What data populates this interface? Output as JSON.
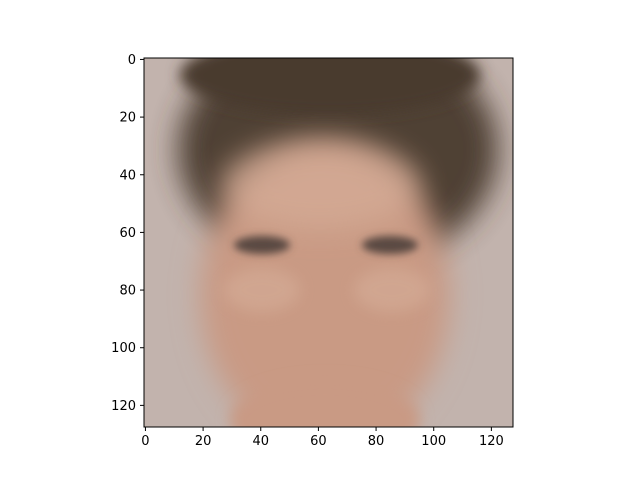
{
  "chart_data": {
    "type": "heatmap",
    "subtype": "image",
    "title": "",
    "xlabel": "",
    "ylabel": "",
    "image_shape": [
      128,
      128
    ],
    "xlim": [
      -0.5,
      127.5
    ],
    "ylim": [
      127.5,
      -0.5
    ],
    "x_ticks": [
      0,
      20,
      40,
      60,
      80,
      100,
      120
    ],
    "y_ticks": [
      0,
      20,
      40,
      60,
      80,
      100,
      120
    ],
    "x_tick_labels": [
      "0",
      "20",
      "40",
      "60",
      "80",
      "100",
      "120"
    ],
    "y_tick_labels": [
      "0",
      "20",
      "40",
      "60",
      "80",
      "100",
      "120"
    ],
    "image_content": "blurry average face",
    "colors": {
      "background_gray": "#c2b3ad",
      "hair_dark": "#4a3a2e",
      "skin": "#c99a84",
      "skin_light": "#d6ad98",
      "eyes": "#5a4a42"
    }
  }
}
